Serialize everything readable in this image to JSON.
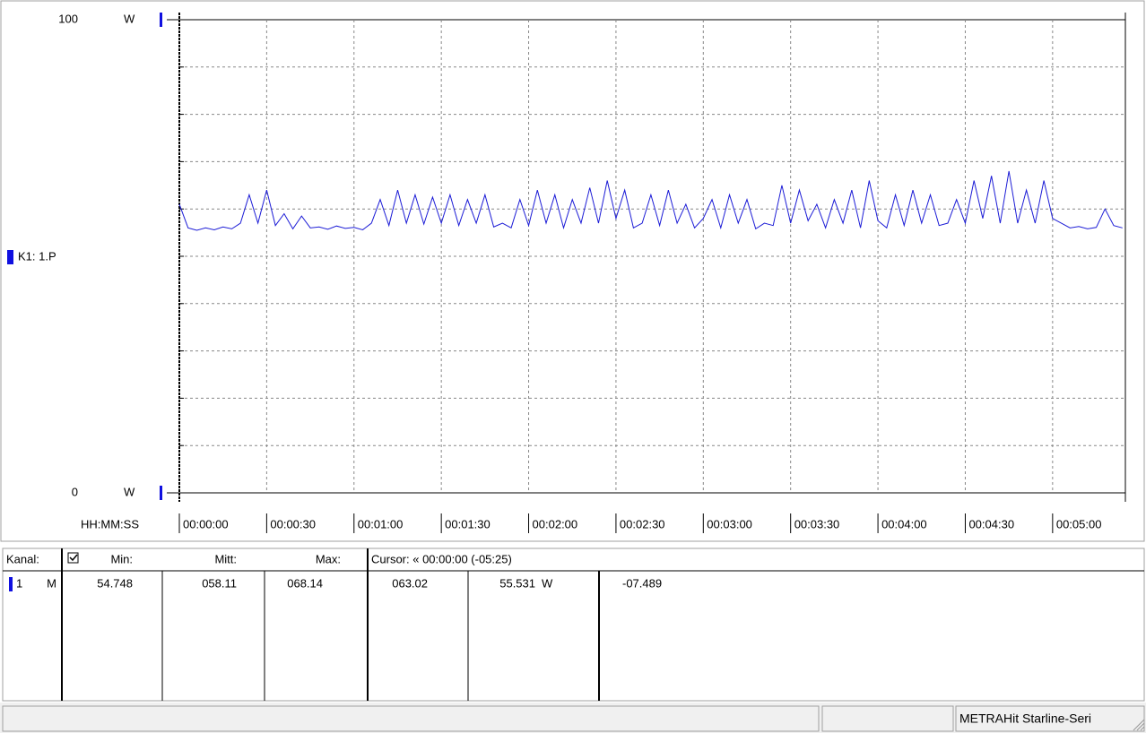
{
  "chart_data": {
    "type": "line",
    "y_unit": "W",
    "channel_label": "K1: 1.P",
    "x_axis_label": "HH:MM:SS",
    "xlim": [
      0,
      325
    ],
    "ylim": [
      0,
      100
    ],
    "yticks": [
      0,
      100
    ],
    "ygrid": [
      10,
      20,
      30,
      40,
      50,
      60,
      70,
      80,
      90
    ],
    "xticks": [
      {
        "value": 0,
        "label": "00:00:00"
      },
      {
        "value": 30,
        "label": "00:00:30"
      },
      {
        "value": 60,
        "label": "00:01:00"
      },
      {
        "value": 90,
        "label": "00:01:30"
      },
      {
        "value": 120,
        "label": "00:02:00"
      },
      {
        "value": 150,
        "label": "00:02:30"
      },
      {
        "value": 180,
        "label": "00:03:00"
      },
      {
        "value": 210,
        "label": "00:03:30"
      },
      {
        "value": 240,
        "label": "00:04:00"
      },
      {
        "value": 270,
        "label": "00:04:30"
      },
      {
        "value": 300,
        "label": "00:05:00"
      }
    ],
    "grid": true,
    "series": [
      {
        "name": "1",
        "color": "#1c1cd6",
        "x": [
          0,
          3,
          6,
          9,
          12,
          15,
          18,
          21,
          24,
          27,
          30,
          33,
          36,
          39,
          42,
          45,
          48,
          51,
          54,
          57,
          60,
          63,
          66,
          69,
          72,
          75,
          78,
          81,
          84,
          87,
          90,
          93,
          96,
          99,
          102,
          105,
          108,
          111,
          114,
          117,
          120,
          123,
          126,
          129,
          132,
          135,
          138,
          141,
          144,
          147,
          150,
          153,
          156,
          159,
          162,
          165,
          168,
          171,
          174,
          177,
          180,
          183,
          186,
          189,
          192,
          195,
          198,
          201,
          204,
          207,
          210,
          213,
          216,
          219,
          222,
          225,
          228,
          231,
          234,
          237,
          240,
          243,
          246,
          249,
          252,
          255,
          258,
          261,
          264,
          267,
          270,
          273,
          276,
          279,
          282,
          285,
          288,
          291,
          294,
          297,
          300,
          303,
          306,
          309,
          312,
          315,
          318,
          321,
          324
        ],
        "values": [
          61,
          56,
          55.5,
          56,
          55.6,
          56.2,
          55.8,
          57,
          63,
          57,
          64,
          56.5,
          59,
          55.8,
          58.5,
          56,
          56.2,
          55.7,
          56.4,
          55.9,
          56.1,
          55.6,
          57,
          62,
          56.5,
          64,
          57,
          63,
          56.8,
          62.5,
          57,
          63,
          56.5,
          62,
          57,
          63,
          56.2,
          57,
          56,
          62,
          56.5,
          64,
          57,
          63,
          56,
          62,
          57,
          64.5,
          57,
          66,
          58,
          64,
          56,
          57,
          63,
          56.5,
          64,
          57,
          61,
          56,
          58,
          62,
          56,
          63,
          57,
          62,
          55.8,
          57,
          56.5,
          65,
          57,
          64,
          57.5,
          61,
          56,
          62,
          57,
          64,
          56,
          66,
          57.5,
          56,
          63,
          56.5,
          64,
          57,
          63,
          56.5,
          57,
          62,
          57,
          66,
          58,
          67,
          57,
          68,
          57,
          64,
          57,
          66,
          58,
          57,
          56,
          56.3,
          55.8,
          56.1,
          60,
          56.5,
          56
        ]
      }
    ]
  },
  "table": {
    "headers": [
      "Kanal:",
      "Min:",
      "Mitt:",
      "Max:",
      "Cursor: « 00:00:00 (-05:25)"
    ],
    "rows": [
      [
        "1",
        "M",
        "54.748",
        "058.11",
        "068.14",
        "063.02",
        "55.531",
        "W",
        "-07.489"
      ]
    ]
  },
  "status_bar": {
    "device": "METRAHit Starline-Seri"
  }
}
